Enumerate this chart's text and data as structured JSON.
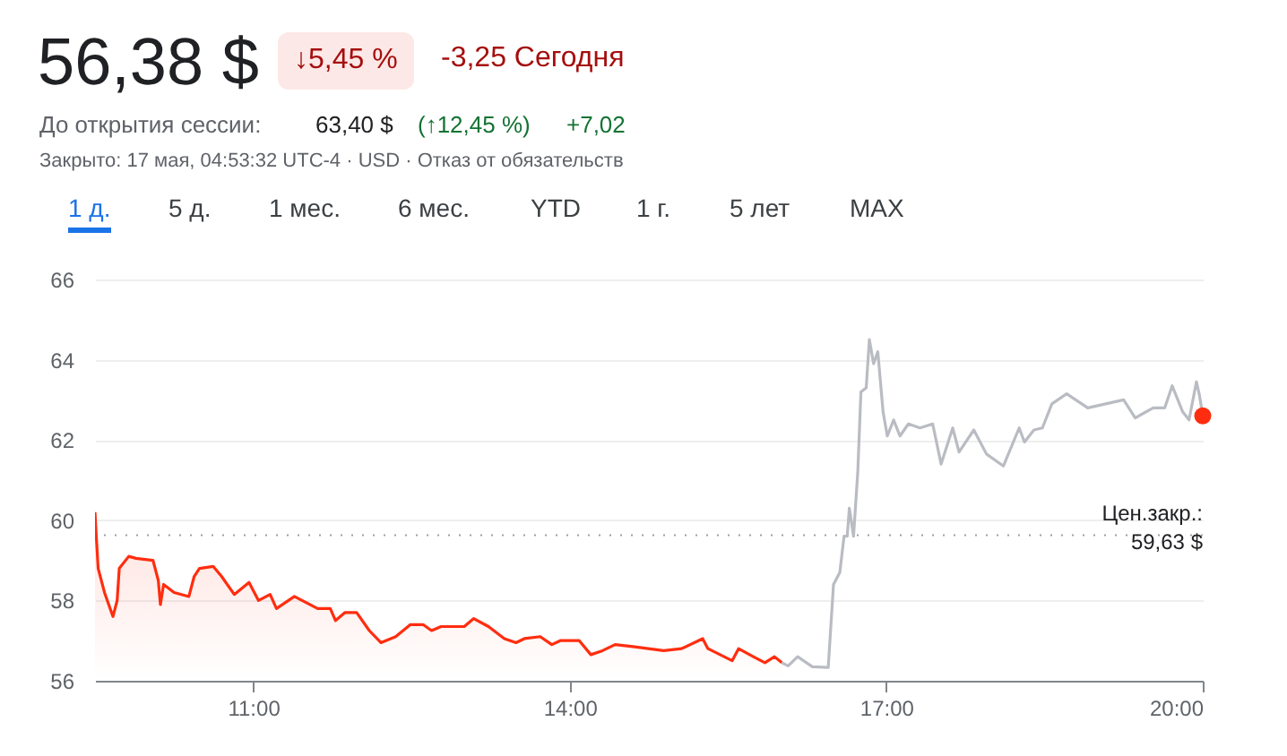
{
  "chart_data": {
    "type": "area",
    "title": "56,38 $",
    "annotations": [
      "↓5,45 %",
      "-3,25 Сегодня",
      "До открытия сессии:",
      "63,40 $",
      "(↑12,45 %)",
      "+7,02",
      "Закрыто: 17 мая, 04:53:32 UTC-4 · USD · Отказ от обязательств",
      "1 д.",
      "5 д.",
      "1 мес.",
      "6 мес.",
      "YTD",
      "1 г.",
      "5 лет",
      "MAX"
    ],
    "xlim": [
      9.5,
      20
    ],
    "xticks": [
      {
        "value": 11,
        "label": "11:00"
      },
      {
        "value": 14,
        "label": "14:00"
      },
      {
        "value": 17,
        "label": "17:00"
      },
      {
        "value": 20,
        "label": "20:00"
      }
    ],
    "ylim": [
      56,
      66
    ],
    "yticks": [
      56,
      58,
      60,
      62,
      64,
      66
    ],
    "grid": "y",
    "ref_lines": [
      {
        "axis": "y",
        "value": 59.63,
        "label": "Цен.закр.:\n59,63 $",
        "color": "#9aa0a6",
        "line_style": "dotted"
      }
    ],
    "series": [
      {
        "color": "#ff2d0f",
        "x": [
          9.5,
          9.51,
          9.53,
          9.59,
          9.67,
          9.71,
          9.73,
          9.82,
          9.89,
          10.05,
          10.1,
          10.12,
          10.15,
          10.25,
          10.39,
          10.44,
          10.49,
          10.62,
          10.7,
          10.82,
          10.96,
          11.05,
          11.16,
          11.22,
          11.39,
          11.5,
          11.61,
          11.73,
          11.78,
          11.87,
          11.98,
          12.1,
          12.21,
          12.35,
          12.49,
          12.61,
          12.69,
          12.78,
          13.0,
          13.09,
          13.23,
          13.38,
          13.49,
          13.57,
          13.72,
          13.83,
          13.91,
          14.09,
          14.2,
          14.31,
          14.43,
          14.6,
          14.89,
          15.06,
          15.26,
          15.31,
          15.54,
          15.6,
          15.74,
          15.85,
          15.94,
          16.01
        ],
        "values": [
          60.2,
          59.7,
          58.8,
          58.2,
          57.6,
          58.0,
          58.8,
          59.1,
          59.05,
          59.0,
          58.5,
          57.9,
          58.4,
          58.2,
          58.1,
          58.6,
          58.8,
          58.85,
          58.6,
          58.15,
          58.45,
          58.0,
          58.15,
          57.8,
          58.1,
          57.95,
          57.8,
          57.8,
          57.5,
          57.7,
          57.7,
          57.25,
          56.95,
          57.1,
          57.4,
          57.4,
          57.25,
          57.35,
          57.35,
          57.55,
          57.35,
          57.05,
          56.95,
          57.05,
          57.1,
          56.9,
          57.0,
          57.0,
          56.65,
          56.75,
          56.9,
          56.85,
          56.75,
          56.8,
          57.05,
          56.8,
          56.5,
          56.8,
          56.6,
          56.45,
          56.6,
          56.45
        ]
      },
      {
        "type": "line",
        "color": "#b9bcc2",
        "x": [
          16.01,
          16.07,
          16.16,
          16.3,
          16.45,
          16.5,
          16.56,
          16.6,
          16.63,
          16.65,
          16.69,
          16.73,
          16.76,
          16.81,
          16.84,
          16.88,
          16.92,
          16.97,
          17.01,
          17.07,
          17.13,
          17.21,
          17.32,
          17.44,
          17.52,
          17.63,
          17.69,
          17.83,
          17.95,
          18.11,
          18.26,
          18.31,
          18.4,
          18.48,
          18.57,
          18.71,
          18.91,
          19.08,
          19.25,
          19.36,
          19.53,
          19.64,
          19.71,
          19.81,
          19.87,
          19.94,
          19.97,
          20.0
        ],
        "values": [
          56.45,
          56.37,
          56.6,
          56.35,
          56.33,
          58.4,
          58.7,
          59.6,
          59.6,
          60.3,
          59.6,
          61.2,
          63.2,
          63.3,
          64.5,
          63.9,
          64.2,
          62.7,
          62.1,
          62.5,
          62.1,
          62.4,
          62.3,
          62.4,
          61.4,
          62.3,
          61.7,
          62.25,
          61.65,
          61.35,
          62.3,
          61.95,
          62.25,
          62.3,
          62.9,
          63.15,
          62.8,
          62.9,
          63.0,
          62.55,
          62.8,
          62.8,
          63.35,
          62.7,
          62.5,
          63.45,
          63.1,
          62.6
        ]
      },
      {
        "type": "scatter",
        "color": "#ff2d0f",
        "x": [
          20.0
        ],
        "values": [
          62.6
        ]
      }
    ]
  }
}
